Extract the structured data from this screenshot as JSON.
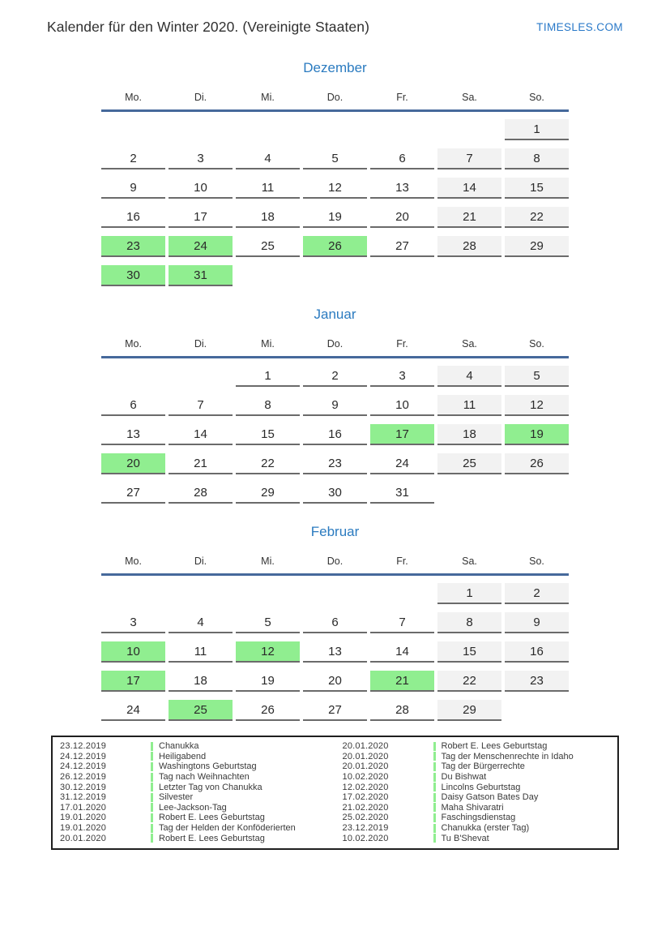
{
  "page": {
    "title": "Kalender für den Winter 2020. (Vereinigte Staaten)",
    "brand": "TIMESLES.COM"
  },
  "weekdays": [
    "Mo.",
    "Di.",
    "Mi.",
    "Do.",
    "Fr.",
    "Sa.",
    "So."
  ],
  "months": [
    {
      "name": "Dezember",
      "rows": [
        [
          null,
          null,
          null,
          null,
          null,
          null,
          {
            "d": 1,
            "t": "we"
          }
        ],
        [
          {
            "d": 2
          },
          {
            "d": 3
          },
          {
            "d": 4
          },
          {
            "d": 5
          },
          {
            "d": 6
          },
          {
            "d": 7,
            "t": "we"
          },
          {
            "d": 8,
            "t": "we"
          }
        ],
        [
          {
            "d": 9
          },
          {
            "d": 10
          },
          {
            "d": 11
          },
          {
            "d": 12
          },
          {
            "d": 13
          },
          {
            "d": 14,
            "t": "we"
          },
          {
            "d": 15,
            "t": "we"
          }
        ],
        [
          {
            "d": 16
          },
          {
            "d": 17
          },
          {
            "d": 18
          },
          {
            "d": 19
          },
          {
            "d": 20
          },
          {
            "d": 21,
            "t": "we"
          },
          {
            "d": 22,
            "t": "we"
          }
        ],
        [
          {
            "d": 23,
            "t": "hol"
          },
          {
            "d": 24,
            "t": "hol"
          },
          {
            "d": 25
          },
          {
            "d": 26,
            "t": "hol"
          },
          {
            "d": 27
          },
          {
            "d": 28,
            "t": "we"
          },
          {
            "d": 29,
            "t": "we"
          }
        ],
        [
          {
            "d": 30,
            "t": "hol"
          },
          {
            "d": 31,
            "t": "hol"
          },
          null,
          null,
          null,
          null,
          null
        ]
      ]
    },
    {
      "name": "Januar",
      "rows": [
        [
          null,
          null,
          {
            "d": 1
          },
          {
            "d": 2
          },
          {
            "d": 3
          },
          {
            "d": 4,
            "t": "we"
          },
          {
            "d": 5,
            "t": "we"
          }
        ],
        [
          {
            "d": 6
          },
          {
            "d": 7
          },
          {
            "d": 8
          },
          {
            "d": 9
          },
          {
            "d": 10
          },
          {
            "d": 11,
            "t": "we"
          },
          {
            "d": 12,
            "t": "we"
          }
        ],
        [
          {
            "d": 13
          },
          {
            "d": 14
          },
          {
            "d": 15
          },
          {
            "d": 16
          },
          {
            "d": 17,
            "t": "hol"
          },
          {
            "d": 18,
            "t": "we"
          },
          {
            "d": 19,
            "t": "hol"
          }
        ],
        [
          {
            "d": 20,
            "t": "hol"
          },
          {
            "d": 21
          },
          {
            "d": 22
          },
          {
            "d": 23
          },
          {
            "d": 24
          },
          {
            "d": 25,
            "t": "we"
          },
          {
            "d": 26,
            "t": "we"
          }
        ],
        [
          {
            "d": 27
          },
          {
            "d": 28
          },
          {
            "d": 29
          },
          {
            "d": 30
          },
          {
            "d": 31
          },
          null,
          null
        ]
      ]
    },
    {
      "name": "Februar",
      "rows": [
        [
          null,
          null,
          null,
          null,
          null,
          {
            "d": 1,
            "t": "we"
          },
          {
            "d": 2,
            "t": "we"
          }
        ],
        [
          {
            "d": 3
          },
          {
            "d": 4
          },
          {
            "d": 5
          },
          {
            "d": 6
          },
          {
            "d": 7
          },
          {
            "d": 8,
            "t": "we"
          },
          {
            "d": 9,
            "t": "we"
          }
        ],
        [
          {
            "d": 10,
            "t": "hol"
          },
          {
            "d": 11
          },
          {
            "d": 12,
            "t": "hol"
          },
          {
            "d": 13
          },
          {
            "d": 14
          },
          {
            "d": 15,
            "t": "we"
          },
          {
            "d": 16,
            "t": "we"
          }
        ],
        [
          {
            "d": 17,
            "t": "hol"
          },
          {
            "d": 18
          },
          {
            "d": 19
          },
          {
            "d": 20
          },
          {
            "d": 21,
            "t": "hol"
          },
          {
            "d": 22,
            "t": "we"
          },
          {
            "d": 23,
            "t": "we"
          }
        ],
        [
          {
            "d": 24
          },
          {
            "d": 25,
            "t": "hol"
          },
          {
            "d": 26
          },
          {
            "d": 27
          },
          {
            "d": 28
          },
          {
            "d": 29,
            "t": "we"
          },
          null
        ]
      ]
    }
  ],
  "legend": {
    "columns": [
      [
        {
          "date": "23.12.2019",
          "name": "Chanukka"
        },
        {
          "date": "24.12.2019",
          "name": "Heiligabend"
        },
        {
          "date": "24.12.2019",
          "name": "Washingtons Geburtstag"
        },
        {
          "date": "26.12.2019",
          "name": "Tag nach Weihnachten"
        },
        {
          "date": "30.12.2019",
          "name": "Letzter Tag von Chanukka"
        },
        {
          "date": "31.12.2019",
          "name": "Silvester"
        },
        {
          "date": "17.01.2020",
          "name": "Lee-Jackson-Tag"
        },
        {
          "date": "19.01.2020",
          "name": "Robert E. Lees Geburtstag"
        },
        {
          "date": "19.01.2020",
          "name": "Tag der Helden der Konföderierten"
        },
        {
          "date": "20.01.2020",
          "name": "Robert E. Lees Geburtstag"
        }
      ],
      [
        {
          "date": "20.01.2020",
          "name": "Robert E. Lees Geburtstag"
        },
        {
          "date": "20.01.2020",
          "name": "Tag der Menschenrechte in Idaho"
        },
        {
          "date": "20.01.2020",
          "name": "Tag der Bürgerrechte"
        },
        {
          "date": "10.02.2020",
          "name": "Du Bishwat"
        },
        {
          "date": "12.02.2020",
          "name": "Lincolns Geburtstag"
        },
        {
          "date": "17.02.2020",
          "name": "Daisy Gatson Bates Day"
        },
        {
          "date": "21.02.2020",
          "name": "Maha Shivaratri"
        },
        {
          "date": "25.02.2020",
          "name": "Faschingsdienstag"
        },
        {
          "date": "23.12.2019",
          "name": "Chanukka (erster Tag)"
        },
        {
          "date": "10.02.2020",
          "name": "Tu B'Shevat"
        }
      ]
    ]
  },
  "colors": {
    "holiday": "#90ee90",
    "weekend": "#f2f2f2",
    "cell-border": "#6b6b6b",
    "rule-blue": "#46699b",
    "month-blue": "#2b7bc0",
    "brand-blue": "#2878c8"
  }
}
